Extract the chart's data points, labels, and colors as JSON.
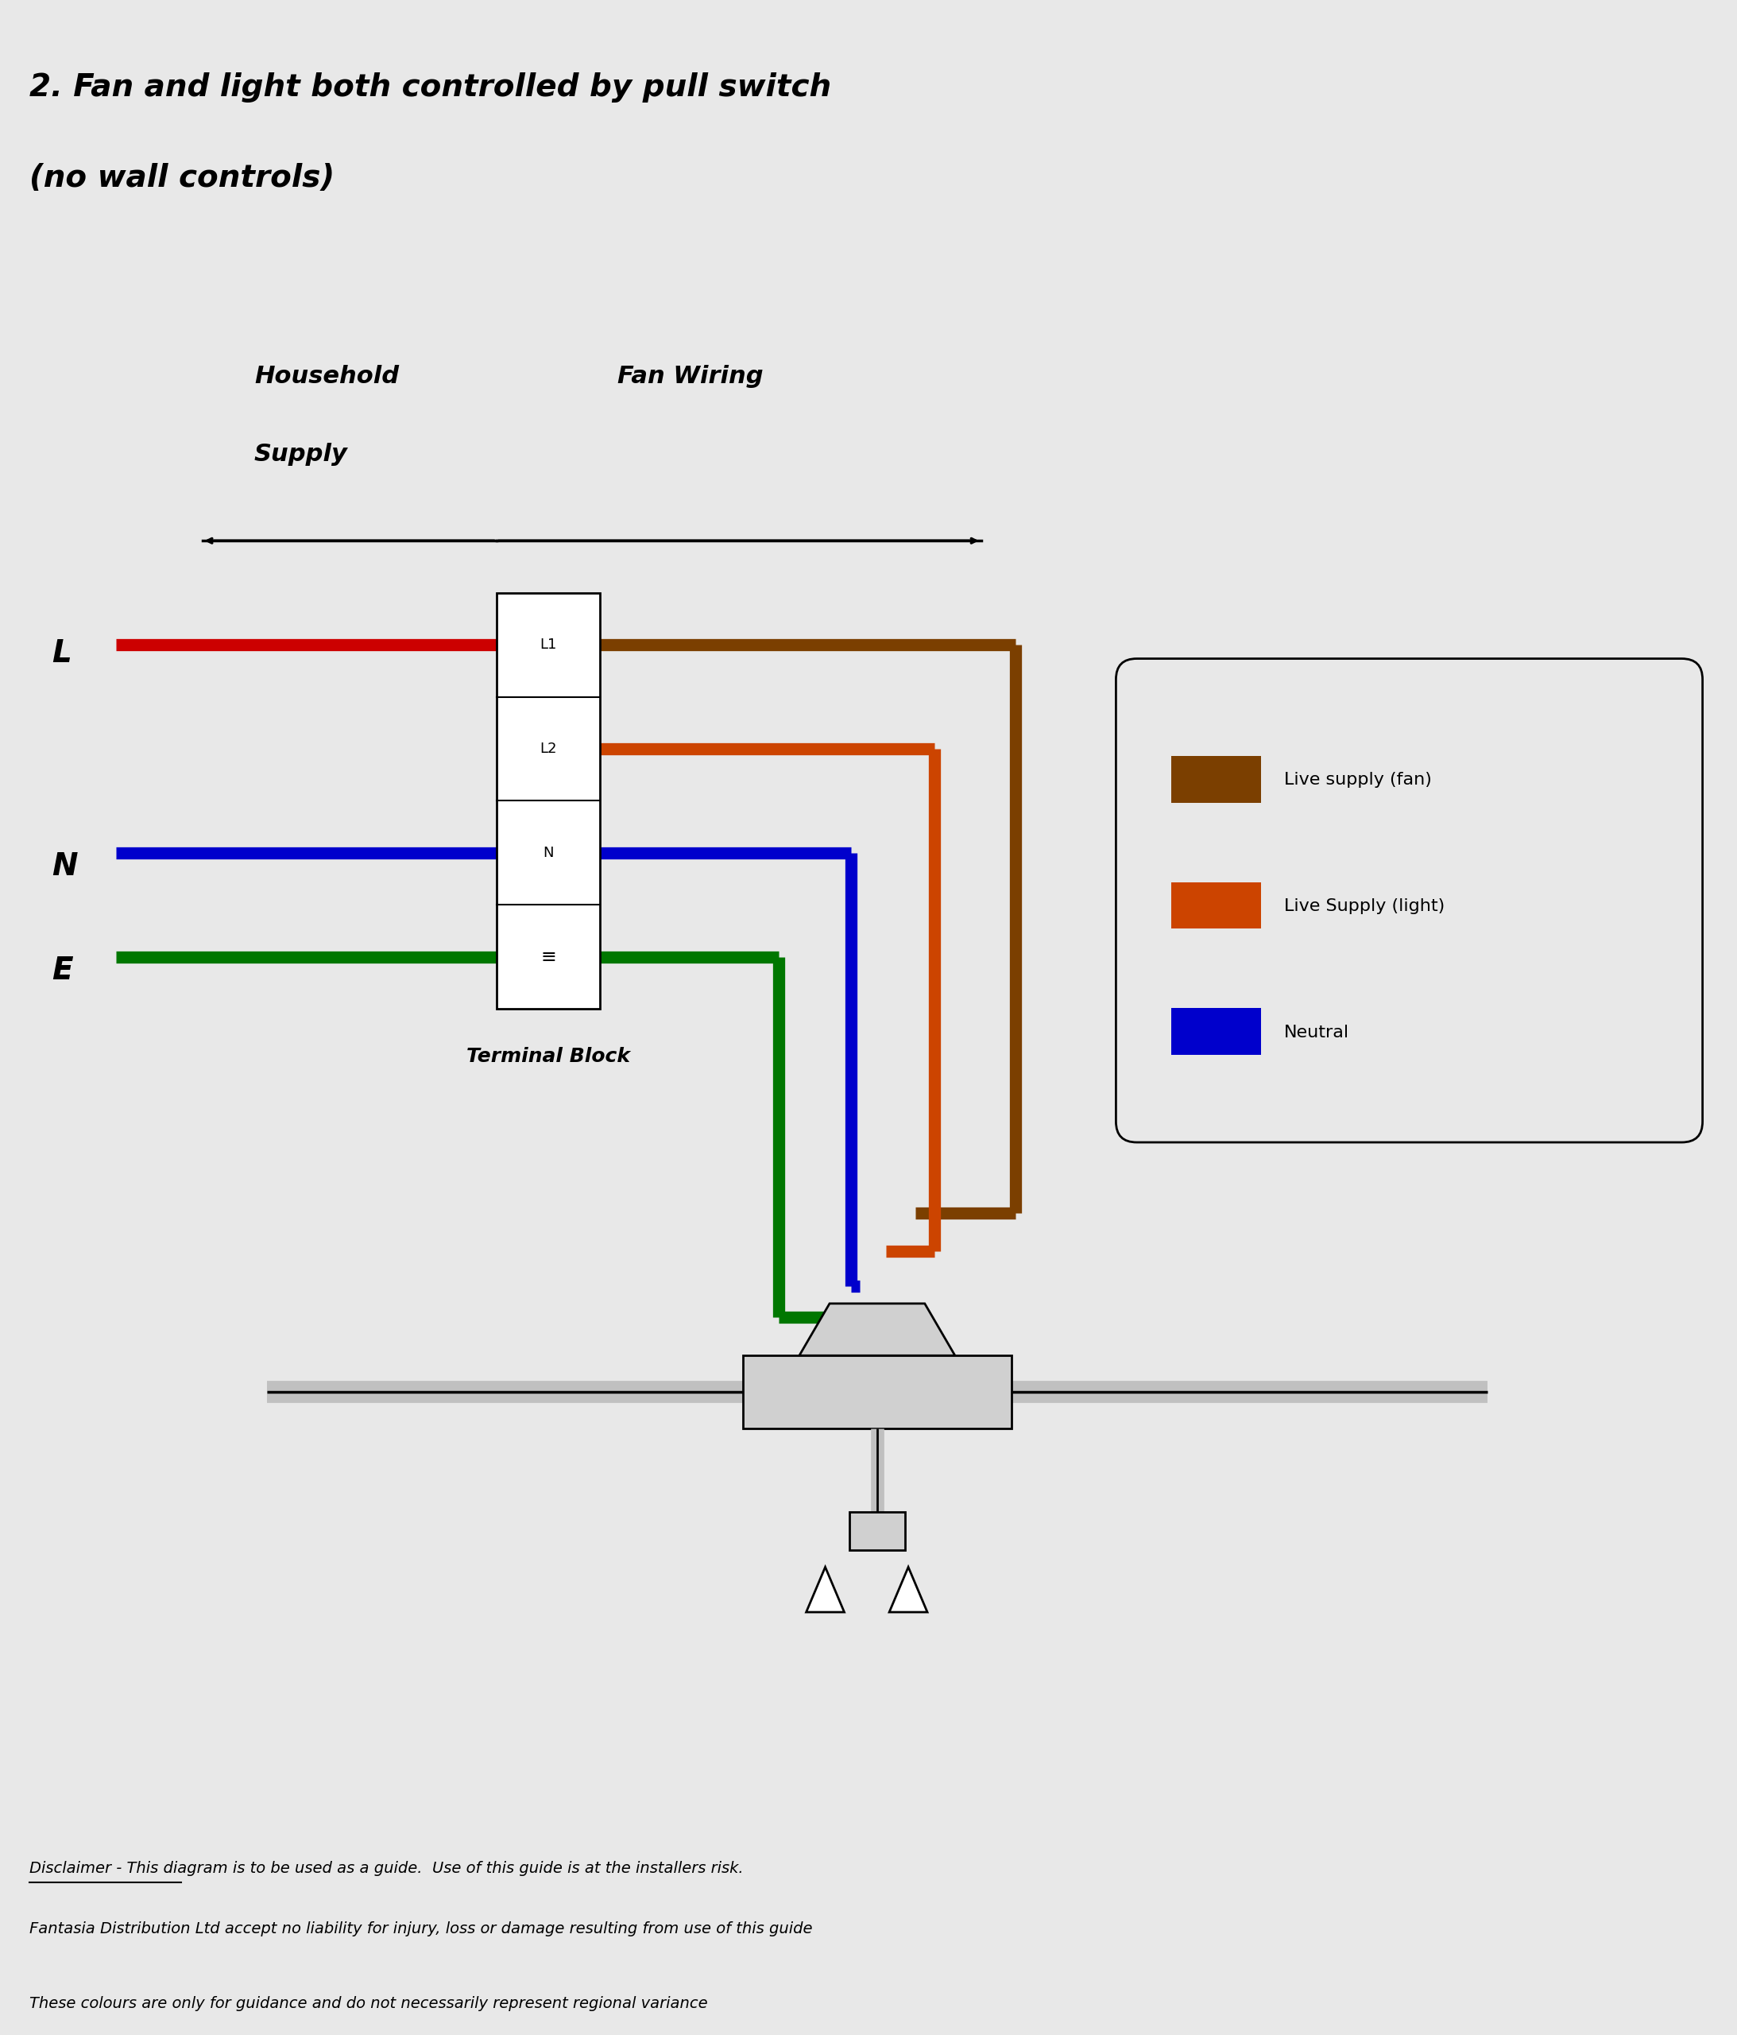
{
  "title_line1": "2. Fan and light both controlled by pull switch",
  "title_line2": "(no wall controls)",
  "background_color": "#e8e8e8",
  "text_color": "#000000",
  "wire_colors": {
    "red": "#cc0000",
    "brown": "#7B3F00",
    "orange": "#cc4400",
    "blue": "#0000cc",
    "green": "#007700"
  },
  "legend_items": [
    {
      "color": "#7B3F00",
      "label": "Live supply (fan)"
    },
    {
      "color": "#cc4400",
      "label": "Live Supply (light)"
    },
    {
      "color": "#0000cc",
      "label": "Neutral"
    }
  ],
  "disclaimer_line1": "Disclaimer - This diagram is to be used as a guide.  Use of this guide is at the installers risk.",
  "disclaimer_line2": "Fantasia Distribution Ltd accept no liability for injury, loss or damage resulting from use of this guide",
  "disclaimer_line3": "These colours are only for guidance and do not necessarily represent regional variance"
}
